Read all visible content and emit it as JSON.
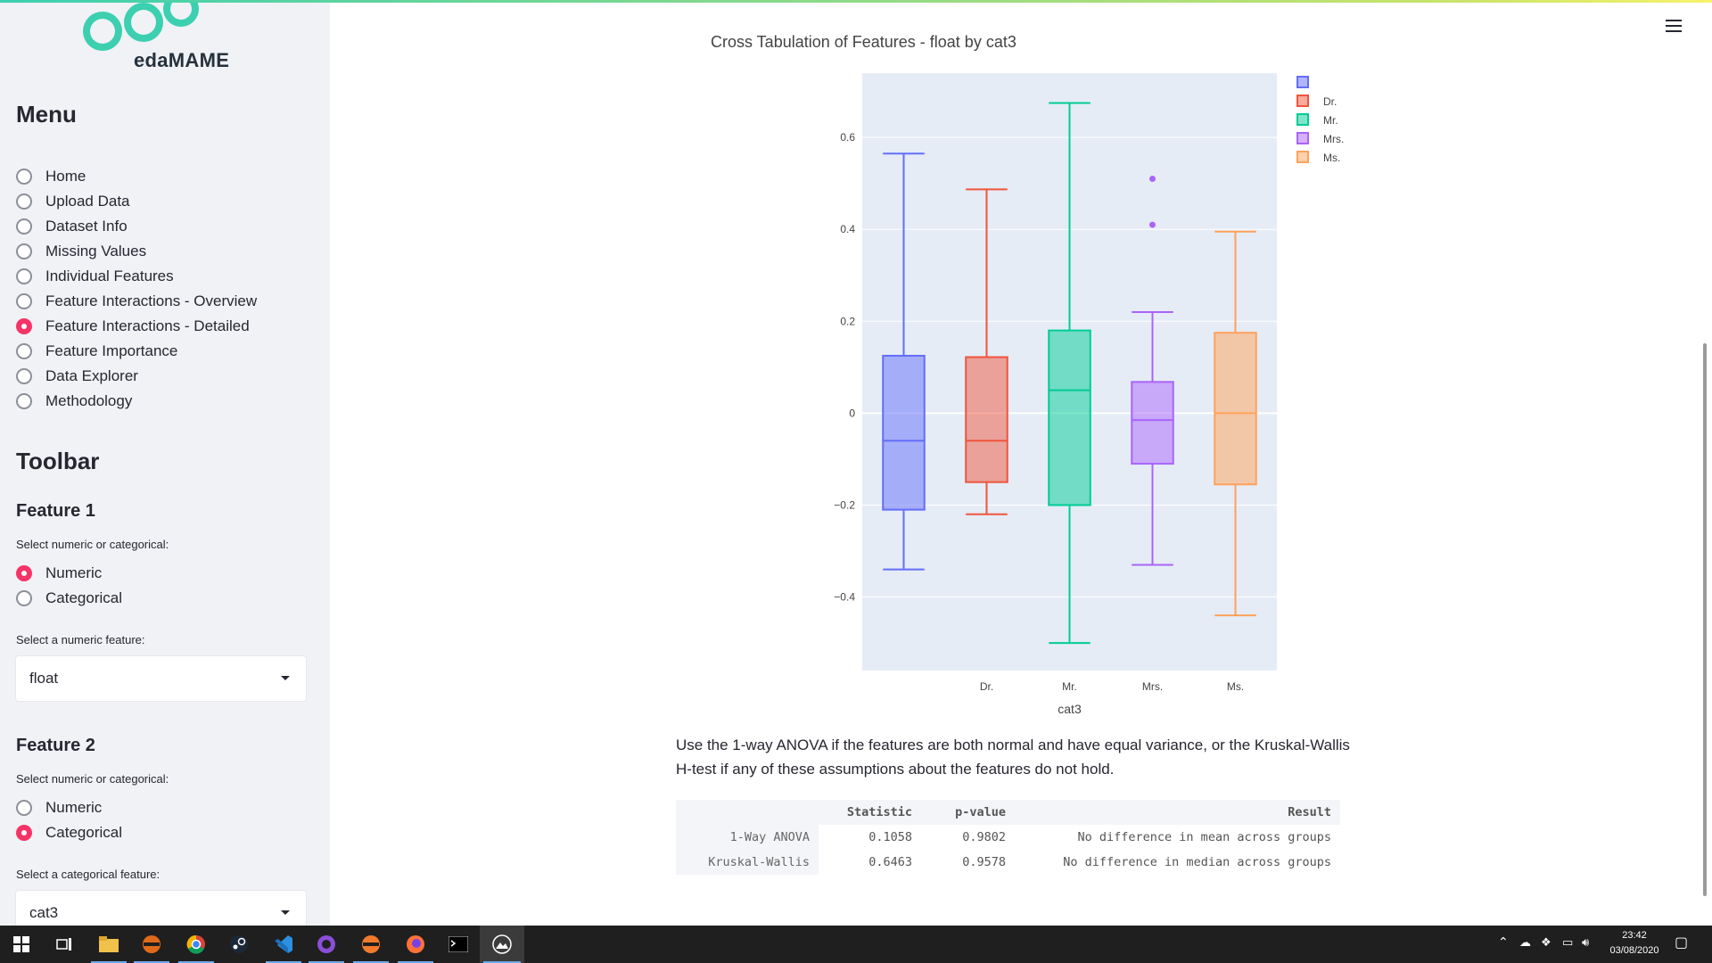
{
  "app": {
    "logo_text": "edaMAME"
  },
  "sidebar": {
    "menu_title": "Menu",
    "menu_items": [
      {
        "label": "Home",
        "selected": false
      },
      {
        "label": "Upload Data",
        "selected": false
      },
      {
        "label": "Dataset Info",
        "selected": false
      },
      {
        "label": "Missing Values",
        "selected": false
      },
      {
        "label": "Individual Features",
        "selected": false
      },
      {
        "label": "Feature Interactions - Overview",
        "selected": false
      },
      {
        "label": "Feature Interactions - Detailed",
        "selected": true
      },
      {
        "label": "Feature Importance",
        "selected": false
      },
      {
        "label": "Data Explorer",
        "selected": false
      },
      {
        "label": "Methodology",
        "selected": false
      }
    ],
    "toolbar_title": "Toolbar",
    "feature1": {
      "title": "Feature 1",
      "type_label": "Select numeric or categorical:",
      "options": [
        {
          "label": "Numeric",
          "selected": true
        },
        {
          "label": "Categorical",
          "selected": false
        }
      ],
      "select_label": "Select a numeric feature:",
      "select_value": "float"
    },
    "feature2": {
      "title": "Feature 2",
      "type_label": "Select numeric or categorical:",
      "options": [
        {
          "label": "Numeric",
          "selected": false
        },
        {
          "label": "Categorical",
          "selected": true
        }
      ],
      "select_label": "Select a categorical feature:",
      "select_value": "cat3"
    }
  },
  "main": {
    "chart_title": "Cross Tabulation of Features - float by cat3",
    "paragraph": "Use the 1-way ANOVA if the features are both normal and have equal variance, or the Kruskal-Wallis H-test if any of these assumptions about the features do not hold.",
    "results_table": {
      "headers": [
        "",
        "Statistic",
        "p-value",
        "Result"
      ],
      "rows": [
        [
          "1-Way ANOVA",
          "0.1058",
          "0.9802",
          "No difference in mean across groups"
        ],
        [
          "Kruskal-Wallis",
          "0.6463",
          "0.9578",
          "No difference in median across groups"
        ]
      ]
    }
  },
  "chart_data": {
    "type": "box",
    "title": "Cross Tabulation of Features - float by cat3",
    "xlabel": "cat3",
    "ylabel": "",
    "ylim": [
      -0.56,
      0.74
    ],
    "yticks": [
      -0.4,
      -0.2,
      0,
      0.2,
      0.4,
      0.6
    ],
    "ytick_labels": [
      "−0.4",
      "−0.2",
      "0",
      "0.2",
      "0.4",
      "0.6"
    ],
    "grid": true,
    "legend_position": "top-right",
    "series": [
      {
        "name": "",
        "category": "",
        "color": "#636efa",
        "min": -0.34,
        "q1": -0.21,
        "median": -0.06,
        "q3": 0.125,
        "max": 0.565,
        "outliers": []
      },
      {
        "name": "Dr.",
        "category": "Dr.",
        "color": "#ef553b",
        "min": -0.22,
        "q1": -0.15,
        "median": -0.06,
        "q3": 0.122,
        "max": 0.487,
        "outliers": []
      },
      {
        "name": "Mr.",
        "category": "Mr.",
        "color": "#00cc96",
        "min": -0.5,
        "q1": -0.2,
        "median": 0.05,
        "q3": 0.18,
        "max": 0.675,
        "outliers": []
      },
      {
        "name": "Mrs.",
        "category": "Mrs.",
        "color": "#ab63fa",
        "min": -0.33,
        "q1": -0.11,
        "median": -0.015,
        "q3": 0.068,
        "max": 0.22,
        "outliers": [
          0.51,
          0.41
        ]
      },
      {
        "name": "Ms.",
        "category": "Ms.",
        "color": "#ffa15a",
        "min": -0.44,
        "q1": -0.155,
        "median": 0.0,
        "q3": 0.175,
        "max": 0.395,
        "outliers": []
      }
    ]
  },
  "taskbar": {
    "time": "23:42",
    "date": "03/08/2020",
    "icons": [
      "windows-start-icon",
      "task-view-icon",
      "file-explorer-icon",
      "eclipse-icon",
      "chrome-icon",
      "steam-icon",
      "vscode-icon",
      "pycharm-icon",
      "eclipse2-icon",
      "firefox-icon",
      "terminal-icon",
      "streamlit-icon"
    ]
  }
}
